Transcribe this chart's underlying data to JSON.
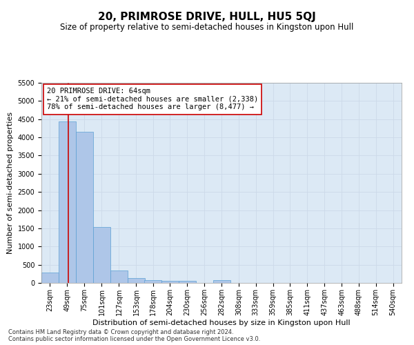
{
  "title": "20, PRIMROSE DRIVE, HULL, HU5 5QJ",
  "subtitle": "Size of property relative to semi-detached houses in Kingston upon Hull",
  "xlabel": "Distribution of semi-detached houses by size in Kingston upon Hull",
  "ylabel": "Number of semi-detached properties",
  "footnote1": "Contains HM Land Registry data © Crown copyright and database right 2024.",
  "footnote2": "Contains public sector information licensed under the Open Government Licence v3.0.",
  "annotation_line1": "20 PRIMROSE DRIVE: 64sqm",
  "annotation_line2": "← 21% of semi-detached houses are smaller (2,338)",
  "annotation_line3": "78% of semi-detached houses are larger (8,477) →",
  "property_size": 64,
  "categories": [
    "23sqm",
    "49sqm",
    "75sqm",
    "101sqm",
    "127sqm",
    "153sqm",
    "178sqm",
    "204sqm",
    "230sqm",
    "256sqm",
    "282sqm",
    "308sqm",
    "333sqm",
    "359sqm",
    "385sqm",
    "411sqm",
    "437sqm",
    "463sqm",
    "488sqm",
    "514sqm",
    "540sqm"
  ],
  "bin_edges": [
    23,
    49,
    75,
    101,
    127,
    153,
    178,
    204,
    230,
    256,
    282,
    308,
    333,
    359,
    385,
    411,
    437,
    463,
    488,
    514,
    540
  ],
  "values": [
    285,
    4430,
    4150,
    1540,
    340,
    125,
    75,
    65,
    55,
    0,
    75,
    0,
    0,
    0,
    0,
    0,
    0,
    0,
    0,
    0,
    0
  ],
  "bar_color": "#aec6e8",
  "bar_edge_color": "#5a9fd4",
  "vline_x": 64,
  "vline_color": "#cc0000",
  "ylim": [
    0,
    5500
  ],
  "yticks": [
    0,
    500,
    1000,
    1500,
    2000,
    2500,
    3000,
    3500,
    4000,
    4500,
    5000,
    5500
  ],
  "grid_color": "#ccd9e8",
  "background_color": "#dce9f5",
  "annotation_box_color": "#ffffff",
  "annotation_box_edge": "#cc0000",
  "title_fontsize": 11,
  "subtitle_fontsize": 8.5,
  "axis_label_fontsize": 8,
  "tick_fontsize": 7,
  "annotation_fontsize": 7.5,
  "footnote_fontsize": 6
}
